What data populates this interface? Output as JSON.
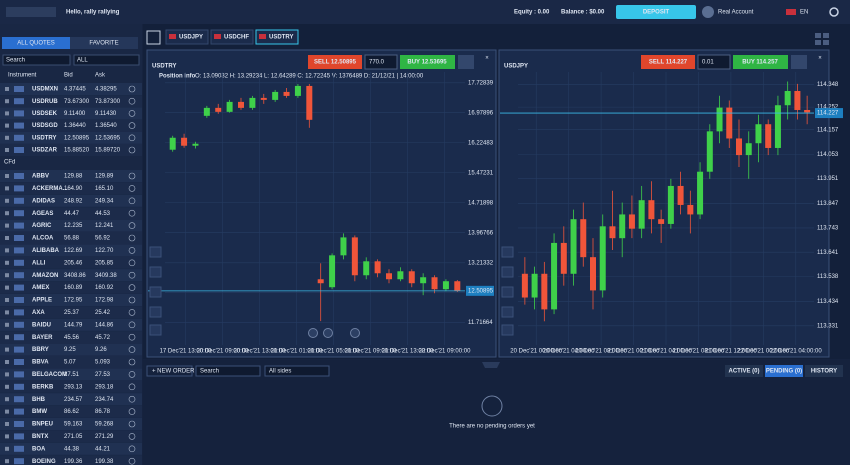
{
  "header": {
    "greeting": "Hello, rally rallying",
    "equity": "Equity : 0.00",
    "balance": "Balance : $0.00",
    "deposit": "DEPOSIT",
    "account": "Real Account",
    "language": "EN"
  },
  "quotes": {
    "tabs": [
      "ALL QUOTES",
      "FAVORITE"
    ],
    "search": "Search",
    "filter": "ALL",
    "columns": [
      "Instrument",
      "Bid",
      "Ask"
    ],
    "group": "CFd",
    "rows": [
      {
        "name": "USDMXN",
        "bid": "4.37445",
        "ask": "4.38295",
        "color": "red"
      },
      {
        "name": "USDRUB",
        "bid": "73.67300",
        "ask": "73.87300",
        "color": "red"
      },
      {
        "name": "USDSEK",
        "bid": "9.11400",
        "ask": "9.11430",
        "color": "green"
      },
      {
        "name": "USDSGD",
        "bid": "1.36440",
        "ask": "1.36540",
        "color": "white"
      },
      {
        "name": "USDTRY",
        "bid": "12.50895",
        "ask": "12.53695",
        "color": "green"
      },
      {
        "name": "USDZAR",
        "bid": "15.88520",
        "ask": "15.89720",
        "color": "green"
      }
    ],
    "cfd_rows": [
      {
        "name": "ABBV",
        "bid": "129.88",
        "ask": "129.89",
        "color": "white"
      },
      {
        "name": "ACKERMA...",
        "bid": "164.90",
        "ask": "165.10",
        "color": "white"
      },
      {
        "name": "ADIDAS",
        "bid": "248.92",
        "ask": "249.34",
        "color": "red"
      },
      {
        "name": "AGEAS",
        "bid": "44.47",
        "ask": "44.53",
        "color": "red"
      },
      {
        "name": "AGRIC",
        "bid": "12.235",
        "ask": "12.241",
        "color": "green"
      },
      {
        "name": "ALCOA",
        "bid": "56.88",
        "ask": "56.92",
        "color": "white"
      },
      {
        "name": "ALIBABA",
        "bid": "122.69",
        "ask": "122.70",
        "color": "white"
      },
      {
        "name": "ALLI",
        "bid": "205.46",
        "ask": "205.85",
        "color": "green"
      },
      {
        "name": "AMAZON",
        "bid": "3408.86",
        "ask": "3409.38",
        "color": "white"
      },
      {
        "name": "AMEX",
        "bid": "160.89",
        "ask": "160.92",
        "color": "white"
      },
      {
        "name": "APPLE",
        "bid": "172.95",
        "ask": "172.98",
        "color": "white"
      },
      {
        "name": "AXA",
        "bid": "25.37",
        "ask": "25.42",
        "color": "white"
      },
      {
        "name": "BAIDU",
        "bid": "144.79",
        "ask": "144.86",
        "color": "white"
      },
      {
        "name": "BAYER",
        "bid": "45.56",
        "ask": "45.72",
        "color": "red"
      },
      {
        "name": "BBRY",
        "bid": "9.25",
        "ask": "9.26",
        "color": "white"
      },
      {
        "name": "BBVA",
        "bid": "5.07",
        "ask": "5.093",
        "color": "white"
      },
      {
        "name": "BELGACOM",
        "bid": "27.51",
        "ask": "27.53",
        "color": "white"
      },
      {
        "name": "BERKB",
        "bid": "293.13",
        "ask": "293.18",
        "color": "white"
      },
      {
        "name": "BHB",
        "bid": "234.57",
        "ask": "234.74",
        "color": "white"
      },
      {
        "name": "BMW",
        "bid": "86.62",
        "ask": "86.78",
        "color": "green"
      },
      {
        "name": "BNPEU",
        "bid": "59.163",
        "ask": "59.268",
        "color": "green"
      },
      {
        "name": "BNTX",
        "bid": "271.05",
        "ask": "271.29",
        "color": "white"
      },
      {
        "name": "BOA",
        "bid": "44.38",
        "ask": "44.21",
        "color": "white"
      },
      {
        "name": "BOEING",
        "bid": "199.36",
        "ask": "199.38",
        "color": "white"
      }
    ]
  },
  "chart_tabs": [
    "USDJPY",
    "USDCHF",
    "USDTRY"
  ],
  "chart_data": [
    {
      "type": "candlestick",
      "title": "USDTRY",
      "sell": "SELL 12.50895",
      "lot": "770.0",
      "buy": "BUY 12.53695",
      "info_label": "Position info",
      "info": "O: 13.09032  H: 13.29234  L: 12.64289  C: 12.72245  V: 1376489  D: 21/12/21 | 14:00:00",
      "up_color": "#3fd14a",
      "down_color": "#f0553a",
      "grid": true,
      "ylim": [
        11.15,
        18.0
      ],
      "yticks": [
        17.72839,
        16.97896,
        16.22483,
        15.47231,
        14.71898,
        13.96766,
        13.21332,
        12.46991,
        11.71664
      ],
      "current_price": 12.50895,
      "x_labels": [
        "17 Dec'21 13:00:00",
        "20 Dec'21 09:00:00",
        "20 Dec'21 13:00:00",
        "21 Dec'21 01:00:00",
        "21 Dec'21 05:00:00",
        "21 Dec'21 09:00:00",
        "21 Dec'21 13:00:00",
        "22 Dec'21 09:00:00"
      ],
      "open": [
        16.05,
        16.35,
        16.15,
        16.9,
        17.1,
        17.0,
        17.25,
        17.1,
        17.35,
        17.3,
        17.5,
        17.4,
        17.65,
        12.8,
        12.6,
        13.4,
        13.85,
        12.9,
        13.25,
        12.95,
        12.8,
        13.0,
        12.7,
        12.85,
        12.55,
        12.75
      ],
      "high": [
        16.4,
        16.45,
        16.25,
        17.15,
        17.2,
        17.3,
        17.35,
        17.4,
        17.45,
        17.55,
        17.6,
        17.7,
        17.7,
        13.2,
        13.45,
        13.95,
        13.9,
        13.35,
        13.3,
        13.05,
        13.1,
        13.05,
        12.95,
        12.9,
        12.8,
        12.78
      ],
      "low": [
        16.0,
        16.1,
        16.08,
        16.85,
        16.95,
        16.98,
        17.05,
        17.05,
        17.2,
        17.25,
        17.35,
        17.35,
        16.6,
        11.75,
        12.55,
        13.3,
        12.75,
        12.8,
        12.85,
        12.7,
        12.75,
        12.6,
        12.4,
        12.45,
        12.5,
        12.48
      ],
      "close": [
        16.35,
        16.15,
        16.2,
        17.1,
        17.0,
        17.25,
        17.1,
        17.35,
        17.3,
        17.5,
        17.4,
        17.65,
        16.8,
        12.7,
        13.4,
        13.85,
        12.9,
        13.25,
        12.95,
        12.8,
        13.0,
        12.7,
        12.85,
        12.55,
        12.75,
        12.51
      ]
    },
    {
      "type": "candlestick",
      "title": "USDJPY",
      "sell": "SELL 114.227",
      "lot": "0.01",
      "buy": "BUY 114.257",
      "up_color": "#3fd14a",
      "down_color": "#f0553a",
      "grid": true,
      "ylim": [
        113.25,
        114.4
      ],
      "yticks": [
        114.348,
        114.252,
        114.157,
        114.053,
        113.951,
        113.847,
        113.743,
        113.641,
        113.538,
        113.434,
        113.331
      ],
      "current_price": 114.227,
      "x_labels": [
        "20 Dec'21 00:00:00",
        "20 Dec'21 04:00:00",
        "20 Dec'21 08:00:00",
        "21 Dec'21 00:00:00",
        "21 Dec'21 04:00:00",
        "21 Dec'21 08:00:00",
        "21 Dec'21 12:00:00",
        "22 Dec'21 00:00:00",
        "22 Dec'21 04:00:00"
      ],
      "open": [
        113.55,
        113.45,
        113.55,
        113.4,
        113.68,
        113.55,
        113.78,
        113.62,
        113.48,
        113.75,
        113.7,
        113.8,
        113.74,
        113.86,
        113.78,
        113.76,
        113.92,
        113.84,
        113.8,
        113.98,
        114.15,
        114.25,
        114.12,
        114.05,
        114.1,
        114.18,
        114.08,
        114.26,
        114.32,
        114.24
      ],
      "high": [
        113.62,
        113.58,
        113.6,
        113.72,
        113.75,
        113.82,
        113.85,
        113.7,
        113.8,
        113.9,
        113.85,
        113.88,
        113.92,
        113.94,
        113.82,
        113.95,
        113.98,
        113.9,
        114.02,
        114.18,
        114.3,
        114.28,
        114.2,
        114.15,
        114.22,
        114.2,
        114.3,
        114.36,
        114.35,
        114.3
      ],
      "low": [
        113.42,
        113.4,
        113.35,
        113.38,
        113.5,
        113.5,
        113.58,
        113.4,
        113.45,
        113.65,
        113.62,
        113.7,
        113.7,
        113.72,
        113.68,
        113.74,
        113.8,
        113.72,
        113.78,
        113.95,
        114.1,
        114.08,
        114.0,
        113.95,
        114.02,
        114.05,
        114.05,
        114.2,
        114.2,
        114.18
      ],
      "close": [
        113.45,
        113.55,
        113.4,
        113.68,
        113.55,
        113.78,
        113.62,
        113.48,
        113.75,
        113.7,
        113.8,
        113.74,
        113.86,
        113.78,
        113.76,
        113.92,
        113.84,
        113.8,
        113.98,
        114.15,
        114.25,
        114.12,
        114.05,
        114.1,
        114.18,
        114.08,
        114.26,
        114.32,
        114.24,
        114.23
      ]
    }
  ],
  "orders": {
    "new_order": "+ NEW ORDER",
    "search": "Search",
    "sides": "All sides",
    "tabs": [
      "ACTIVE (0)",
      "PENDING (0)",
      "HISTORY"
    ],
    "empty": "There are no pending orders yet"
  }
}
